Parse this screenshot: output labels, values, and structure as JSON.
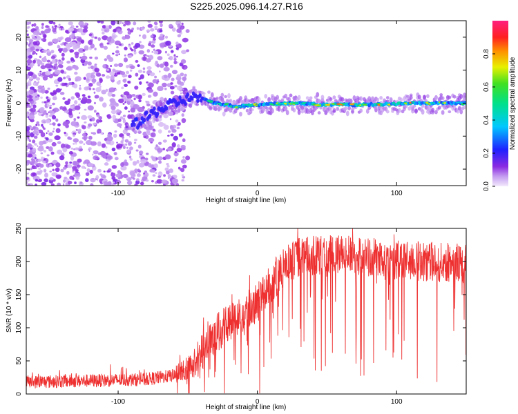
{
  "page": {
    "title": "S225.2025.096.14.27.R16"
  },
  "chart_data": [
    {
      "type": "heatmap",
      "title": "S225.2025.096.14.27.R16",
      "xlabel": "Height of straight line (km)",
      "ylabel": "Frequency (Hz)",
      "xlim": [
        -166,
        150
      ],
      "ylim": [
        -25,
        25
      ],
      "xticks": [
        -100,
        0,
        100
      ],
      "yticks": [
        -20,
        -10,
        0,
        10,
        20
      ],
      "colorbar": {
        "label": "Normalized spectral amplitude",
        "range": [
          0,
          1
        ],
        "ticks": [
          "0.0",
          "0.2",
          "0.4",
          "0.6",
          "0.8"
        ],
        "colormap": "rainbow: light purple → violet → blue → cyan → green → yellow → orange → red → magenta"
      },
      "ridge": {
        "description": "narrow high-amplitude band near 0 Hz",
        "points": [
          {
            "x": -85,
            "y": -6,
            "amplitude": 0.45
          },
          {
            "x": -75,
            "y": -3,
            "amplitude": 0.35
          },
          {
            "x": -60,
            "y": 0,
            "amplitude": 0.3
          },
          {
            "x": -45,
            "y": 2,
            "amplitude": 0.35
          },
          {
            "x": -30,
            "y": 0,
            "amplitude": 0.6
          },
          {
            "x": -15,
            "y": -1,
            "amplitude": 0.75
          },
          {
            "x": 0,
            "y": -0.5,
            "amplitude": 0.7
          },
          {
            "x": 25,
            "y": 0,
            "amplitude": 0.8
          },
          {
            "x": 50,
            "y": -0.5,
            "amplitude": 0.85
          },
          {
            "x": 80,
            "y": -0.5,
            "amplitude": 0.8
          },
          {
            "x": 110,
            "y": 0,
            "amplitude": 0.9
          },
          {
            "x": 150,
            "y": 0,
            "amplitude": 0.6
          }
        ],
        "noise_region_x": [
          -166,
          -50
        ]
      }
    },
    {
      "type": "line",
      "xlabel": "Height of straight line (km)",
      "ylabel": "SNR (10 * v/v)",
      "xlim": [
        -166,
        150
      ],
      "ylim": [
        0,
        250
      ],
      "xticks": [
        -100,
        0,
        100
      ],
      "yticks": [
        0,
        50,
        100,
        150,
        200,
        250
      ],
      "series": [
        {
          "color": "#ee3030",
          "description": "noisy trace: low values, then rising to a high plateau",
          "envelope": [
            {
              "x": -166,
              "y": 18
            },
            {
              "x": -120,
              "y": 20
            },
            {
              "x": -80,
              "y": 22
            },
            {
              "x": -60,
              "y": 28
            },
            {
              "x": -45,
              "y": 50
            },
            {
              "x": -35,
              "y": 85
            },
            {
              "x": -20,
              "y": 110
            },
            {
              "x": 0,
              "y": 140
            },
            {
              "x": 10,
              "y": 170
            },
            {
              "x": 20,
              "y": 195
            },
            {
              "x": 30,
              "y": 210
            },
            {
              "x": 60,
              "y": 215
            },
            {
              "x": 100,
              "y": 205
            },
            {
              "x": 150,
              "y": 200
            }
          ]
        }
      ]
    }
  ],
  "colors": {
    "trace": "#ee3030",
    "axis": "#000000",
    "background": "#ffffff"
  }
}
